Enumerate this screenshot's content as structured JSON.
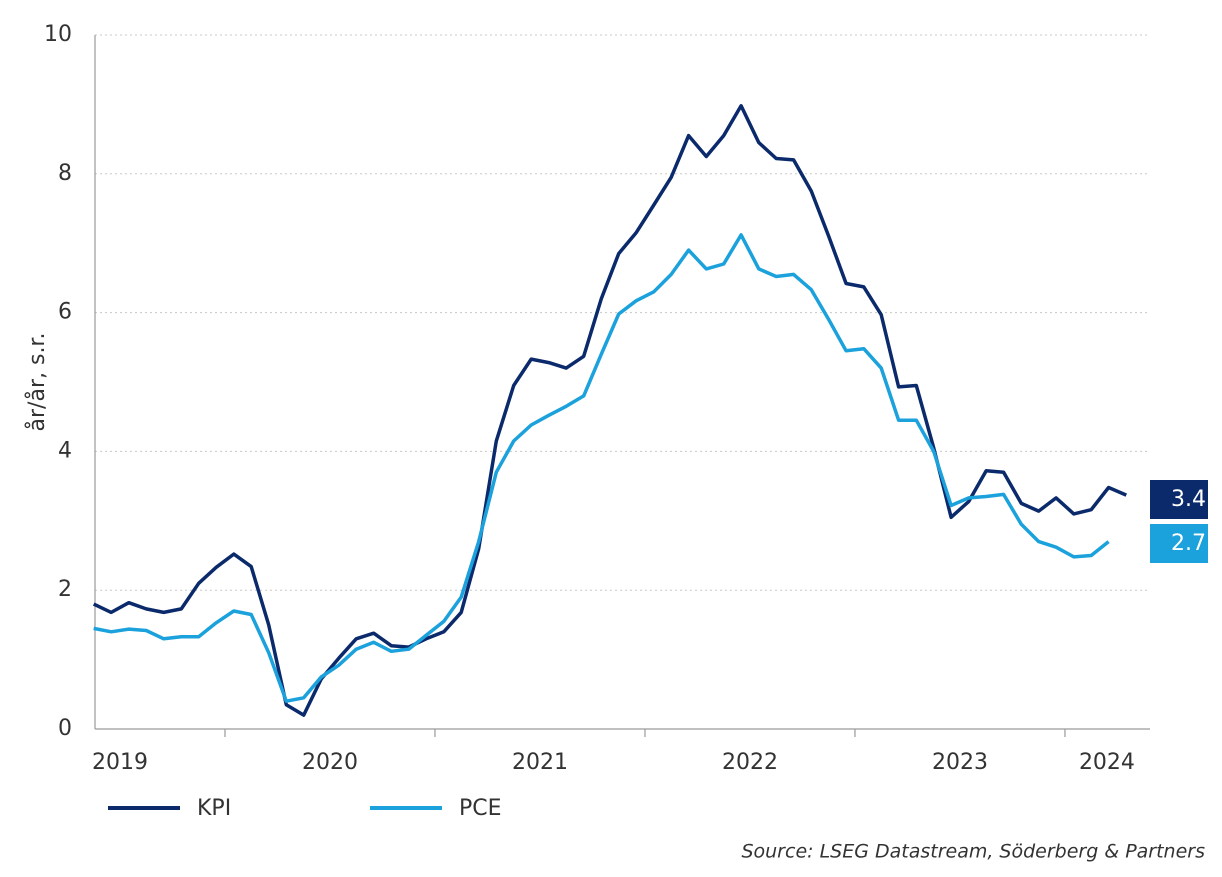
{
  "chart_data": {
    "type": "line",
    "y_label": "år/år, s.r.",
    "source": "Source: LSEG Datastream, Söderberg & Partners",
    "x": [
      2019.375,
      2019.458,
      2019.542,
      2019.625,
      2019.708,
      2019.792,
      2019.875,
      2019.958,
      2020.042,
      2020.125,
      2020.208,
      2020.292,
      2020.375,
      2020.458,
      2020.542,
      2020.625,
      2020.708,
      2020.792,
      2020.875,
      2020.958,
      2021.042,
      2021.125,
      2021.208,
      2021.292,
      2021.375,
      2021.458,
      2021.542,
      2021.625,
      2021.708,
      2021.792,
      2021.875,
      2021.958,
      2022.042,
      2022.125,
      2022.208,
      2022.292,
      2022.375,
      2022.458,
      2022.542,
      2022.625,
      2022.708,
      2022.792,
      2022.875,
      2022.958,
      2023.042,
      2023.125,
      2023.208,
      2023.292,
      2023.375,
      2023.458,
      2023.542,
      2023.625,
      2023.708,
      2023.792,
      2023.875,
      2023.958,
      2024.042,
      2024.125,
      2024.208,
      2024.292
    ],
    "series": [
      {
        "name": "KPI",
        "color": "#0b2a6b",
        "last_label": "3.4",
        "values": [
          1.8,
          1.68,
          1.82,
          1.73,
          1.68,
          1.73,
          2.1,
          2.33,
          2.52,
          2.34,
          1.5,
          0.35,
          0.2,
          0.72,
          1.02,
          1.3,
          1.38,
          1.2,
          1.18,
          1.3,
          1.4,
          1.68,
          2.6,
          4.15,
          4.95,
          5.33,
          5.28,
          5.2,
          5.37,
          6.2,
          6.85,
          7.15,
          7.55,
          7.95,
          8.55,
          8.25,
          8.55,
          8.98,
          8.45,
          8.22,
          8.2,
          7.75,
          7.1,
          6.42,
          6.37,
          5.97,
          4.93,
          4.95,
          4.05,
          3.05,
          3.28,
          3.72,
          3.7,
          3.25,
          3.14,
          3.33,
          3.1,
          3.16,
          3.48,
          3.37
        ]
      },
      {
        "name": "PCE",
        "color": "#1ba1dc",
        "last_label": "2.7",
        "values": [
          1.45,
          1.4,
          1.44,
          1.42,
          1.3,
          1.33,
          1.33,
          1.53,
          1.7,
          1.65,
          1.1,
          0.4,
          0.45,
          0.75,
          0.92,
          1.15,
          1.25,
          1.12,
          1.15,
          1.35,
          1.55,
          1.9,
          2.7,
          3.7,
          4.15,
          4.38,
          4.52,
          4.65,
          4.8,
          5.4,
          5.98,
          6.17,
          6.3,
          6.55,
          6.9,
          6.63,
          6.7,
          7.12,
          6.63,
          6.52,
          6.55,
          6.33,
          5.9,
          5.45,
          5.48,
          5.2,
          4.45,
          4.45,
          4.0,
          3.22,
          3.33,
          3.35,
          3.38,
          2.95,
          2.7,
          2.62,
          2.48,
          2.5,
          2.7,
          null
        ]
      }
    ],
    "xlim": [
      2019.381,
      2024.405
    ],
    "xticks": [
      {
        "value": 2019.5,
        "label": "2019"
      },
      {
        "value": 2020.5,
        "label": "2020"
      },
      {
        "value": 2021.5,
        "label": "2021"
      },
      {
        "value": 2022.5,
        "label": "2022"
      },
      {
        "value": 2023.5,
        "label": "2023"
      },
      {
        "value": 2024.2,
        "label": "2024"
      }
    ],
    "ylim": [
      0,
      10
    ],
    "yticks": [
      0,
      2,
      4,
      6,
      8,
      10
    ],
    "grid": true
  }
}
